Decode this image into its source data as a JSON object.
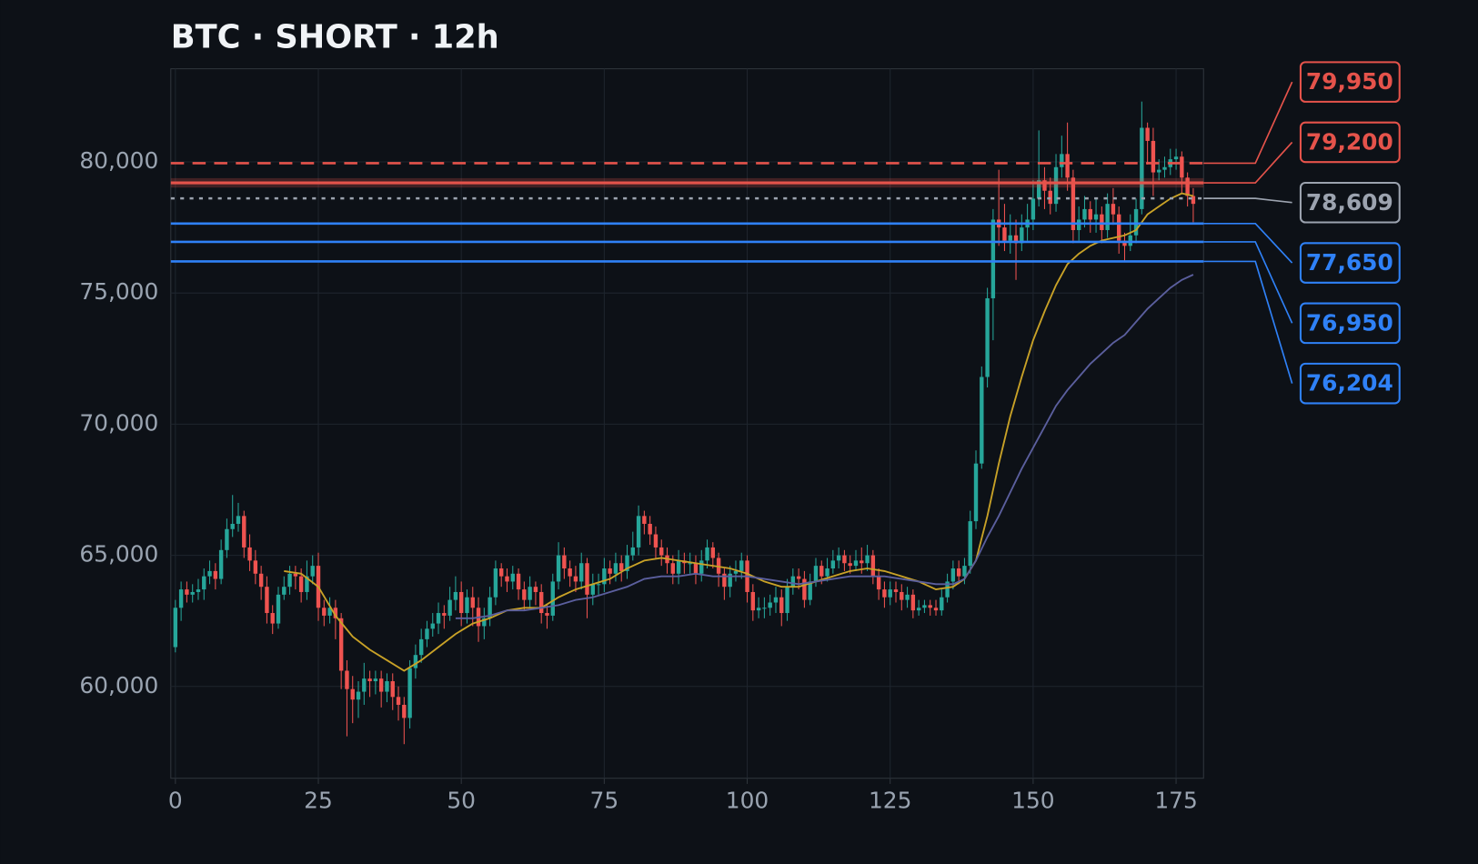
{
  "chart_data": {
    "type": "candlestick",
    "title": "BTC · SHORT · 12h",
    "x": [
      0,
      1,
      2,
      3,
      4,
      5,
      6,
      7,
      8,
      9,
      10,
      11,
      12,
      13,
      14,
      15,
      16,
      17,
      18,
      19,
      20,
      21,
      22,
      23,
      24,
      25,
      26,
      27,
      28,
      29,
      30,
      31,
      32,
      33,
      34,
      35,
      36,
      37,
      38,
      39,
      40,
      41,
      42,
      43,
      44,
      45,
      46,
      47,
      48,
      49,
      50,
      51,
      52,
      53,
      54,
      55,
      56,
      57,
      58,
      59,
      60,
      61,
      62,
      63,
      64,
      65,
      66,
      67,
      68,
      69,
      70,
      71,
      72,
      73,
      74,
      75,
      76,
      77,
      78,
      79,
      80,
      81,
      82,
      83,
      84,
      85,
      86,
      87,
      88,
      89,
      90,
      91,
      92,
      93,
      94,
      95,
      96,
      97,
      98,
      99,
      100,
      101,
      102,
      103,
      104,
      105,
      106,
      107,
      108,
      109,
      110,
      111,
      112,
      113,
      114,
      115,
      116,
      117,
      118,
      119,
      120,
      121,
      122,
      123,
      124,
      125,
      126,
      127,
      128,
      129,
      130,
      131,
      132,
      133,
      134,
      135,
      136,
      137,
      138,
      139,
      140,
      141,
      142,
      143,
      144,
      145,
      146,
      147,
      148,
      149,
      150,
      151,
      152,
      153,
      154,
      155,
      156,
      157,
      158,
      159,
      160,
      161,
      162,
      163,
      164,
      165,
      166,
      167,
      168,
      169,
      170,
      171,
      172,
      173,
      174,
      175,
      176,
      177,
      178
    ],
    "open": [
      61500,
      63000,
      63700,
      63500,
      63600,
      63700,
      64200,
      64400,
      64100,
      65200,
      66000,
      66200,
      66500,
      65300,
      64800,
      64300,
      63800,
      62800,
      62400,
      63500,
      63800,
      64300,
      64200,
      63600,
      64200,
      64600,
      63000,
      62700,
      63000,
      62600,
      60600,
      59900,
      59500,
      59800,
      60300,
      60200,
      60300,
      59800,
      60200,
      59600,
      59300,
      58800,
      60700,
      61200,
      61800,
      62200,
      62400,
      62800,
      62700,
      63300,
      63600,
      62800,
      63400,
      63000,
      62300,
      62600,
      63400,
      64500,
      64200,
      64000,
      64300,
      63700,
      63300,
      63800,
      63600,
      62800,
      62700,
      64000,
      65000,
      64500,
      64200,
      64000,
      64700,
      63500,
      63900,
      63900,
      64500,
      64300,
      64700,
      64400,
      65000,
      65300,
      66500,
      66200,
      65800,
      65300,
      65000,
      64700,
      64300,
      64800,
      64700,
      64700,
      64300,
      64800,
      65300,
      64900,
      64300,
      63800,
      64300,
      64400,
      64800,
      63600,
      62900,
      63000,
      63000,
      63200,
      63400,
      62800,
      63800,
      64200,
      64100,
      63300,
      64000,
      64600,
      64200,
      64500,
      64800,
      65000,
      64700,
      64600,
      64800,
      64700,
      65000,
      64200,
      63700,
      63400,
      63700,
      63600,
      63300,
      63500,
      62900,
      63000,
      63100,
      63000,
      62900,
      63400,
      64000,
      64500,
      64200,
      64600,
      66300,
      68500,
      71800,
      74800,
      77800,
      77500,
      77000,
      77200,
      76900,
      77500,
      77800,
      78600,
      79300,
      78900,
      78400,
      79800,
      80300,
      79400,
      77400,
      77800,
      78200,
      77800,
      78000,
      77400,
      78400,
      78000,
      77000,
      76800,
      77200,
      78200,
      81300,
      80800,
      79600,
      79700,
      79800,
      80100,
      80200,
      79400,
      78700
    ],
    "high": [
      63300,
      64000,
      64000,
      63900,
      64100,
      64500,
      64800,
      64700,
      65600,
      66400,
      67300,
      67000,
      66700,
      65800,
      65200,
      64600,
      64200,
      63100,
      63800,
      64200,
      64600,
      64600,
      64500,
      64800,
      65000,
      65100,
      63300,
      63400,
      63300,
      62800,
      61000,
      60400,
      60200,
      60900,
      60600,
      60600,
      60600,
      60500,
      60500,
      60000,
      59600,
      61000,
      61600,
      62200,
      62500,
      62800,
      63200,
      63100,
      63800,
      64200,
      64000,
      63700,
      63800,
      63400,
      63000,
      63800,
      64800,
      64700,
      64500,
      64600,
      64500,
      64000,
      64200,
      64000,
      63900,
      63100,
      64300,
      65500,
      65300,
      64800,
      64600,
      65100,
      64900,
      64300,
      64300,
      64900,
      64800,
      65100,
      65000,
      65400,
      65900,
      66900,
      66700,
      66500,
      66100,
      65600,
      65300,
      65000,
      65200,
      65100,
      65100,
      65000,
      65200,
      65600,
      65500,
      65100,
      64500,
      64600,
      64800,
      65100,
      65000,
      63900,
      63400,
      63400,
      63500,
      63800,
      63700,
      64100,
      64500,
      64500,
      64400,
      64300,
      64900,
      64800,
      64900,
      65200,
      65300,
      65200,
      65000,
      65200,
      65300,
      65400,
      65200,
      64500,
      64000,
      64000,
      64000,
      63900,
      63800,
      63700,
      63300,
      63300,
      63300,
      63300,
      63700,
      64300,
      64800,
      64800,
      64900,
      66700,
      69000,
      72200,
      75200,
      78200,
      79700,
      78400,
      78000,
      77800,
      78000,
      78400,
      79300,
      81200,
      79800,
      79400,
      80300,
      81000,
      81500,
      79700,
      78300,
      78700,
      78500,
      78600,
      78300,
      78800,
      79000,
      78300,
      77300,
      78000,
      78600,
      82300,
      81500,
      81300,
      80100,
      80200,
      80500,
      80500,
      80400,
      79600,
      79000
    ],
    "low": [
      61300,
      62500,
      63200,
      63200,
      63300,
      63300,
      63900,
      63700,
      63900,
      64900,
      65700,
      65900,
      64900,
      64400,
      63900,
      63300,
      62400,
      62000,
      62200,
      63300,
      63500,
      63700,
      63200,
      63300,
      63900,
      62500,
      62300,
      62400,
      61800,
      59900,
      58100,
      58600,
      58800,
      59300,
      59600,
      59700,
      59200,
      59400,
      59100,
      58700,
      57800,
      58400,
      60300,
      60900,
      61500,
      61900,
      62000,
      62200,
      62500,
      62900,
      62300,
      62400,
      62300,
      61700,
      61800,
      62300,
      63100,
      63800,
      63600,
      63700,
      63300,
      62900,
      63000,
      63100,
      62400,
      62200,
      62500,
      63700,
      64100,
      63800,
      63600,
      63700,
      62600,
      63100,
      63500,
      63600,
      63900,
      64000,
      64000,
      64100,
      64800,
      65000,
      65800,
      65400,
      64900,
      64600,
      64300,
      63900,
      63900,
      64300,
      64300,
      63900,
      64000,
      64500,
      64500,
      63800,
      63300,
      63400,
      64000,
      64100,
      63200,
      62500,
      62600,
      62600,
      62700,
      62800,
      62300,
      62500,
      63500,
      63700,
      63000,
      63100,
      63800,
      63900,
      64000,
      64300,
      64500,
      64400,
      64300,
      64400,
      64300,
      64400,
      63900,
      63300,
      63000,
      63100,
      63200,
      62900,
      63000,
      62600,
      62700,
      62800,
      62700,
      62700,
      62700,
      63200,
      63700,
      63900,
      63900,
      64300,
      66000,
      68300,
      71400,
      73200,
      76800,
      76600,
      76500,
      75500,
      76600,
      77000,
      77400,
      78300,
      78200,
      78000,
      78100,
      79400,
      78900,
      76900,
      77000,
      77500,
      77300,
      77300,
      76900,
      77100,
      77600,
      76500,
      76200,
      76600,
      76900,
      78000,
      79900,
      78700,
      79300,
      79400,
      79500,
      79700,
      78800,
      78300,
      77700
    ],
    "close": [
      63000,
      63700,
      63500,
      63600,
      63700,
      64200,
      64400,
      64100,
      65200,
      66000,
      66200,
      66500,
      65300,
      64800,
      64300,
      63800,
      62800,
      62400,
      63500,
      63800,
      64300,
      64200,
      63600,
      64200,
      64600,
      63000,
      62700,
      63000,
      62600,
      60600,
      59900,
      59500,
      59800,
      60300,
      60200,
      60300,
      59800,
      60200,
      59600,
      59300,
      58800,
      60700,
      61200,
      61800,
      62200,
      62400,
      62800,
      62700,
      63300,
      63600,
      62800,
      63400,
      63000,
      62300,
      62600,
      63400,
      64500,
      64200,
      64000,
      64300,
      63700,
      63300,
      63800,
      63600,
      62800,
      62700,
      64000,
      65000,
      64500,
      64200,
      64000,
      64700,
      63500,
      63900,
      63900,
      64500,
      64300,
      64700,
      64400,
      65000,
      65300,
      66500,
      66200,
      65800,
      65300,
      65000,
      64700,
      64300,
      64800,
      64700,
      64700,
      64300,
      64800,
      65300,
      64900,
      64300,
      63800,
      64300,
      64400,
      64800,
      63600,
      62900,
      63000,
      63000,
      63200,
      63400,
      62800,
      63800,
      64200,
      64100,
      63300,
      64000,
      64600,
      64200,
      64500,
      64800,
      65000,
      64700,
      64600,
      64800,
      64700,
      65000,
      64200,
      63700,
      63400,
      63700,
      63600,
      63300,
      63500,
      62900,
      63000,
      63100,
      63000,
      62900,
      63400,
      64000,
      64500,
      64200,
      64600,
      66300,
      68500,
      71800,
      74800,
      77800,
      77500,
      77000,
      77200,
      76900,
      77500,
      77800,
      78600,
      79300,
      78900,
      78400,
      79800,
      80300,
      79400,
      77400,
      77800,
      78200,
      77800,
      78000,
      77400,
      78400,
      78000,
      77000,
      76800,
      77200,
      78200,
      81300,
      80800,
      79600,
      79700,
      79800,
      80100,
      80200,
      79400,
      78700,
      78400
    ],
    "up_color": "#26a69a",
    "down_color": "#ef5350",
    "lines": [
      {
        "color": "#c9a227",
        "x": [
          19,
          22,
          25,
          28,
          31,
          34,
          37,
          40,
          43,
          46,
          49,
          52,
          55,
          58,
          61,
          64,
          67,
          70,
          73,
          76,
          79,
          82,
          85,
          88,
          91,
          94,
          97,
          100,
          103,
          106,
          109,
          112,
          115,
          118,
          121,
          124,
          127,
          130,
          133,
          136,
          138,
          140,
          142,
          144,
          146,
          148,
          150,
          152,
          154,
          156,
          158,
          160,
          162,
          164,
          166,
          168,
          170,
          172,
          174,
          176,
          178
        ],
        "values": [
          64400,
          64300,
          63800,
          62700,
          61900,
          61400,
          61000,
          60600,
          61000,
          61500,
          62000,
          62400,
          62600,
          62900,
          63000,
          63000,
          63400,
          63700,
          63900,
          64100,
          64500,
          64800,
          64900,
          64800,
          64700,
          64600,
          64500,
          64300,
          64000,
          63800,
          63800,
          64000,
          64200,
          64400,
          64500,
          64400,
          64200,
          64000,
          63700,
          63800,
          64100,
          64800,
          66500,
          68500,
          70300,
          71800,
          73200,
          74300,
          75300,
          76100,
          76500,
          76800,
          77000,
          77100,
          77200,
          77400,
          78000,
          78300,
          78600,
          78800,
          78700
        ]
      },
      {
        "color": "#5b5f9e",
        "x": [
          49,
          52,
          55,
          58,
          61,
          64,
          67,
          70,
          73,
          76,
          79,
          82,
          85,
          88,
          91,
          94,
          97,
          100,
          103,
          106,
          109,
          112,
          115,
          118,
          121,
          124,
          127,
          130,
          133,
          136,
          138,
          140,
          142,
          144,
          146,
          148,
          150,
          152,
          154,
          156,
          158,
          160,
          162,
          164,
          166,
          168,
          170,
          172,
          174,
          176,
          178
        ],
        "values": [
          62600,
          62600,
          62700,
          62900,
          62900,
          63000,
          63100,
          63300,
          63400,
          63600,
          63800,
          64100,
          64200,
          64200,
          64300,
          64200,
          64200,
          64200,
          64100,
          64000,
          63900,
          64000,
          64100,
          64200,
          64200,
          64200,
          64100,
          64000,
          63900,
          63900,
          64100,
          64800,
          65700,
          66500,
          67400,
          68300,
          69100,
          69900,
          70700,
          71300,
          71800,
          72300,
          72700,
          73100,
          73400,
          73900,
          74400,
          74800,
          75200,
          75500,
          75700
        ]
      }
    ],
    "levels": [
      {
        "value": 79950,
        "label": "79,950",
        "color": "#e5534b",
        "style": "dashed"
      },
      {
        "value": 79200,
        "label": "79,200",
        "color": "#e5534b",
        "style": "thick"
      },
      {
        "value": 78609,
        "label": "78,609",
        "color": "#9ca3af",
        "style": "dotted"
      },
      {
        "value": 77650,
        "label": "77,650",
        "color": "#2f81f7",
        "style": "solid"
      },
      {
        "value": 76950,
        "label": "76,950",
        "color": "#2f81f7",
        "style": "solid"
      },
      {
        "value": 76204,
        "label": "76,204",
        "color": "#2f81f7",
        "style": "solid"
      }
    ],
    "xlim": [
      -0.8,
      179.8
    ],
    "ylim": [
      56500,
      83550
    ],
    "xticks": [
      0,
      25,
      50,
      75,
      100,
      125,
      150,
      175
    ],
    "yticks": [
      {
        "value": 60000,
        "label": "60,000"
      },
      {
        "value": 65000,
        "label": "65,000"
      },
      {
        "value": 70000,
        "label": "70,000"
      },
      {
        "value": 75000,
        "label": "75,000"
      },
      {
        "value": 80000,
        "label": "80,000"
      }
    ],
    "grid": true
  }
}
